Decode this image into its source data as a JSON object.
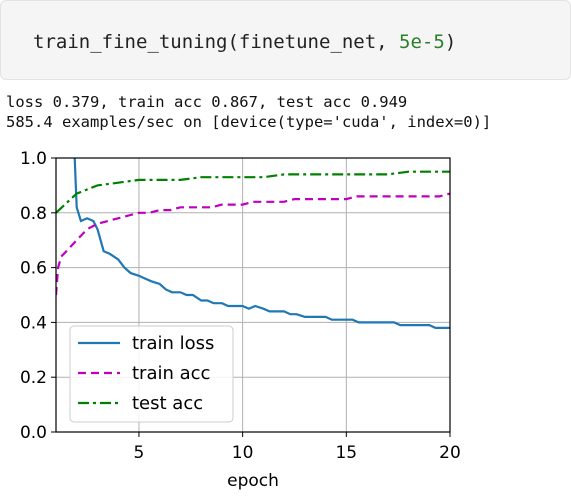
{
  "code": {
    "prefix": "train_fine_tuning(finetune_net, ",
    "number": "5e-5",
    "suffix": ")"
  },
  "output": {
    "line1": "loss 0.379, train acc 0.867, test acc 0.949",
    "line2": "585.4 examples/sec on [device(type='cuda', index=0)]"
  },
  "chart_data": {
    "type": "line",
    "xlabel": "epoch",
    "ylabel": "",
    "xlim": [
      1,
      20
    ],
    "ylim": [
      0,
      1.0
    ],
    "xticks": [
      5,
      10,
      15,
      20
    ],
    "yticks": [
      0.0,
      0.2,
      0.4,
      0.6,
      0.8,
      1.0
    ],
    "grid": true,
    "legend_position": "lower-left",
    "series": [
      {
        "name": "train loss",
        "color": "#1f77b4",
        "dash": "solid",
        "x": [
          1.9,
          2.0,
          2.2,
          2.5,
          2.8,
          3.0,
          3.3,
          3.6,
          4.0,
          4.3,
          4.6,
          5.0,
          5.3,
          5.6,
          6.0,
          6.3,
          6.6,
          7.0,
          7.3,
          7.6,
          8.0,
          8.3,
          8.6,
          9.0,
          9.3,
          9.6,
          10.0,
          10.3,
          10.6,
          11.0,
          11.3,
          11.6,
          12.0,
          12.3,
          12.6,
          13.0,
          13.3,
          13.6,
          14.0,
          14.3,
          14.6,
          15.0,
          15.3,
          15.6,
          16.0,
          16.3,
          16.6,
          17.0,
          17.3,
          17.6,
          18.0,
          18.3,
          18.6,
          19.0,
          19.3,
          19.6,
          20.0
        ],
        "y": [
          1.0,
          0.82,
          0.77,
          0.78,
          0.77,
          0.74,
          0.66,
          0.65,
          0.63,
          0.6,
          0.58,
          0.57,
          0.56,
          0.55,
          0.54,
          0.52,
          0.51,
          0.51,
          0.5,
          0.5,
          0.48,
          0.48,
          0.47,
          0.47,
          0.46,
          0.46,
          0.46,
          0.45,
          0.46,
          0.45,
          0.44,
          0.44,
          0.44,
          0.43,
          0.43,
          0.42,
          0.42,
          0.42,
          0.42,
          0.41,
          0.41,
          0.41,
          0.41,
          0.4,
          0.4,
          0.4,
          0.4,
          0.4,
          0.4,
          0.39,
          0.39,
          0.39,
          0.39,
          0.39,
          0.38,
          0.38,
          0.38
        ]
      },
      {
        "name": "train acc",
        "color": "#bf00bf",
        "dash": "dashed",
        "x": [
          1.0,
          1.1,
          1.25,
          1.5,
          2.0,
          2.5,
          3.0,
          3.5,
          4.0,
          4.5,
          5.0,
          5.5,
          6.0,
          6.5,
          7.0,
          7.5,
          8.0,
          8.5,
          9.0,
          9.5,
          10.0,
          10.5,
          11.0,
          11.5,
          12.0,
          12.5,
          13.0,
          13.5,
          14.0,
          14.5,
          15.0,
          15.5,
          16.0,
          16.5,
          17.0,
          17.5,
          18.0,
          18.5,
          19.0,
          19.5,
          20.0
        ],
        "y": [
          0.5,
          0.6,
          0.64,
          0.66,
          0.7,
          0.74,
          0.76,
          0.77,
          0.78,
          0.79,
          0.8,
          0.8,
          0.81,
          0.81,
          0.82,
          0.82,
          0.82,
          0.82,
          0.83,
          0.83,
          0.83,
          0.84,
          0.84,
          0.84,
          0.84,
          0.85,
          0.85,
          0.85,
          0.85,
          0.85,
          0.85,
          0.86,
          0.86,
          0.86,
          0.86,
          0.86,
          0.86,
          0.86,
          0.86,
          0.86,
          0.87
        ]
      },
      {
        "name": "test acc",
        "color": "#008000",
        "dash": "dashdot",
        "x": [
          1.0,
          2.0,
          3.0,
          4.0,
          5.0,
          6.0,
          7.0,
          8.0,
          9.0,
          10.0,
          11.0,
          12.0,
          13.0,
          14.0,
          15.0,
          16.0,
          17.0,
          18.0,
          19.0,
          20.0
        ],
        "y": [
          0.8,
          0.87,
          0.9,
          0.91,
          0.92,
          0.92,
          0.92,
          0.93,
          0.93,
          0.93,
          0.93,
          0.94,
          0.94,
          0.94,
          0.94,
          0.94,
          0.94,
          0.95,
          0.95,
          0.95
        ]
      }
    ]
  }
}
